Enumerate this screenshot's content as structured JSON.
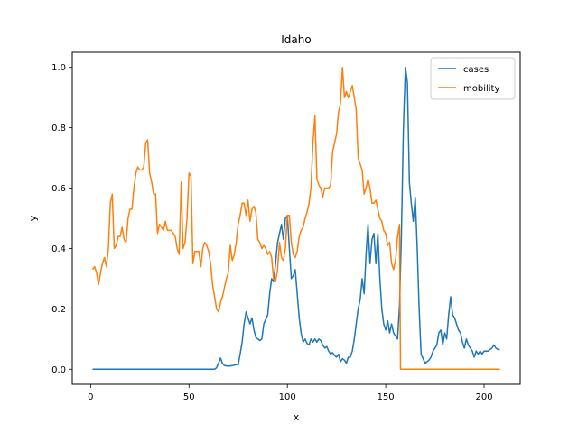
{
  "chart_data": {
    "type": "line",
    "title": "Idaho",
    "xlabel": "x",
    "ylabel": "y",
    "xlim": [
      -9.35,
      218.35
    ],
    "ylim": [
      -0.05,
      1.05
    ],
    "xticks": [
      0,
      50,
      100,
      150,
      200
    ],
    "yticks": [
      0.0,
      0.2,
      0.4,
      0.6,
      0.8,
      1.0
    ],
    "xtick_labels": [
      "0",
      "50",
      "100",
      "150",
      "200"
    ],
    "ytick_labels": [
      "0.0",
      "0.2",
      "0.4",
      "0.6",
      "0.8",
      "1.0"
    ],
    "legend": "top-right",
    "series": [
      {
        "name": "cases",
        "color": "#1f77b4",
        "points": [
          [
            1,
            0
          ],
          [
            20,
            0
          ],
          [
            40,
            0
          ],
          [
            55,
            0
          ],
          [
            63,
            0
          ],
          [
            64,
            0.005
          ],
          [
            65,
            0.02
          ],
          [
            66,
            0.037
          ],
          [
            67,
            0.02
          ],
          [
            68,
            0.012
          ],
          [
            70,
            0.01
          ],
          [
            72,
            0.012
          ],
          [
            74,
            0.015
          ],
          [
            75,
            0.015
          ],
          [
            76,
            0.05
          ],
          [
            77,
            0.09
          ],
          [
            78,
            0.15
          ],
          [
            79,
            0.19
          ],
          [
            80,
            0.17
          ],
          [
            81,
            0.15
          ],
          [
            82,
            0.17
          ],
          [
            83,
            0.13
          ],
          [
            84,
            0.105
          ],
          [
            85,
            0.1
          ],
          [
            86,
            0.095
          ],
          [
            87,
            0.1
          ],
          [
            88,
            0.15
          ],
          [
            89,
            0.165
          ],
          [
            90,
            0.18
          ],
          [
            91,
            0.25
          ],
          [
            92,
            0.3
          ],
          [
            93,
            0.29
          ],
          [
            94,
            0.35
          ],
          [
            95,
            0.42
          ],
          [
            96,
            0.45
          ],
          [
            97,
            0.48
          ],
          [
            98,
            0.43
          ],
          [
            99,
            0.5
          ],
          [
            100,
            0.51
          ],
          [
            101,
            0.4
          ],
          [
            102,
            0.3
          ],
          [
            103,
            0.31
          ],
          [
            104,
            0.33
          ],
          [
            105,
            0.25
          ],
          [
            106,
            0.17
          ],
          [
            107,
            0.12
          ],
          [
            108,
            0.09
          ],
          [
            109,
            0.1
          ],
          [
            110,
            0.085
          ],
          [
            111,
            0.08
          ],
          [
            112,
            0.1
          ],
          [
            113,
            0.09
          ],
          [
            114,
            0.1
          ],
          [
            115,
            0.09
          ],
          [
            116,
            0.1
          ],
          [
            117,
            0.095
          ],
          [
            118,
            0.08
          ],
          [
            119,
            0.07
          ],
          [
            120,
            0.075
          ],
          [
            121,
            0.06
          ],
          [
            122,
            0.05
          ],
          [
            123,
            0.055
          ],
          [
            124,
            0.045
          ],
          [
            125,
            0.04
          ],
          [
            126,
            0.05
          ],
          [
            127,
            0.025
          ],
          [
            128,
            0.035
          ],
          [
            129,
            0.03
          ],
          [
            130,
            0.02
          ],
          [
            131,
            0.04
          ],
          [
            132,
            0.04
          ],
          [
            133,
            0.06
          ],
          [
            134,
            0.1
          ],
          [
            135,
            0.15
          ],
          [
            136,
            0.2
          ],
          [
            137,
            0.23
          ],
          [
            138,
            0.3
          ],
          [
            139,
            0.25
          ],
          [
            140,
            0.38
          ],
          [
            141,
            0.48
          ],
          [
            142,
            0.35
          ],
          [
            143,
            0.43
          ],
          [
            144,
            0.45
          ],
          [
            145,
            0.35
          ],
          [
            146,
            0.45
          ],
          [
            147,
            0.3
          ],
          [
            148,
            0.2
          ],
          [
            149,
            0.15
          ],
          [
            150,
            0.13
          ],
          [
            151,
            0.16
          ],
          [
            152,
            0.12
          ],
          [
            153,
            0.15
          ],
          [
            154,
            0.12
          ],
          [
            155,
            0.11
          ],
          [
            156,
            0.1
          ],
          [
            157,
            0.21
          ],
          [
            158,
            0.45
          ],
          [
            159,
            0.8
          ],
          [
            160,
            1.0
          ],
          [
            161,
            0.95
          ],
          [
            162,
            0.62
          ],
          [
            163,
            0.55
          ],
          [
            164,
            0.49
          ],
          [
            165,
            0.57
          ],
          [
            166,
            0.4
          ],
          [
            167,
            0.2
          ],
          [
            168,
            0.05
          ],
          [
            169,
            0.035
          ],
          [
            170,
            0.02
          ],
          [
            171,
            0.025
          ],
          [
            172,
            0.03
          ],
          [
            173,
            0.04
          ],
          [
            174,
            0.06
          ],
          [
            175,
            0.07
          ],
          [
            176,
            0.08
          ],
          [
            177,
            0.12
          ],
          [
            178,
            0.13
          ],
          [
            179,
            0.08
          ],
          [
            180,
            0.12
          ],
          [
            181,
            0.1
          ],
          [
            182,
            0.18
          ],
          [
            183,
            0.24
          ],
          [
            184,
            0.18
          ],
          [
            185,
            0.17
          ],
          [
            186,
            0.15
          ],
          [
            187,
            0.13
          ],
          [
            188,
            0.12
          ],
          [
            189,
            0.09
          ],
          [
            190,
            0.07
          ],
          [
            191,
            0.1
          ],
          [
            192,
            0.08
          ],
          [
            193,
            0.07
          ],
          [
            194,
            0.06
          ],
          [
            195,
            0.04
          ],
          [
            196,
            0.06
          ],
          [
            197,
            0.05
          ],
          [
            198,
            0.06
          ],
          [
            199,
            0.05
          ],
          [
            200,
            0.06
          ],
          [
            202,
            0.06
          ],
          [
            204,
            0.07
          ],
          [
            205,
            0.08
          ],
          [
            206,
            0.07
          ],
          [
            207,
            0.065
          ],
          [
            208,
            0.065
          ]
        ]
      },
      {
        "name": "mobility",
        "color": "#ff7f0e",
        "points": [
          [
            1,
            0.33
          ],
          [
            2,
            0.34
          ],
          [
            3,
            0.32
          ],
          [
            4,
            0.28
          ],
          [
            5,
            0.32
          ],
          [
            6,
            0.35
          ],
          [
            7,
            0.37
          ],
          [
            8,
            0.34
          ],
          [
            9,
            0.4
          ],
          [
            10,
            0.55
          ],
          [
            11,
            0.58
          ],
          [
            12,
            0.4
          ],
          [
            13,
            0.41
          ],
          [
            14,
            0.44
          ],
          [
            15,
            0.44
          ],
          [
            16,
            0.47
          ],
          [
            17,
            0.43
          ],
          [
            18,
            0.42
          ],
          [
            19,
            0.5
          ],
          [
            20,
            0.53
          ],
          [
            21,
            0.53
          ],
          [
            22,
            0.6
          ],
          [
            23,
            0.65
          ],
          [
            24,
            0.67
          ],
          [
            25,
            0.66
          ],
          [
            26,
            0.66
          ],
          [
            27,
            0.67
          ],
          [
            28,
            0.75
          ],
          [
            29,
            0.76
          ],
          [
            30,
            0.65
          ],
          [
            31,
            0.62
          ],
          [
            32,
            0.58
          ],
          [
            33,
            0.58
          ],
          [
            34,
            0.45
          ],
          [
            35,
            0.48
          ],
          [
            36,
            0.47
          ],
          [
            37,
            0.46
          ],
          [
            38,
            0.49
          ],
          [
            39,
            0.46
          ],
          [
            40,
            0.46
          ],
          [
            41,
            0.46
          ],
          [
            42,
            0.45
          ],
          [
            43,
            0.44
          ],
          [
            44,
            0.4
          ],
          [
            45,
            0.38
          ],
          [
            46,
            0.62
          ],
          [
            47,
            0.4
          ],
          [
            48,
            0.42
          ],
          [
            49,
            0.5
          ],
          [
            50,
            0.65
          ],
          [
            51,
            0.64
          ],
          [
            52,
            0.35
          ],
          [
            53,
            0.39
          ],
          [
            54,
            0.39
          ],
          [
            55,
            0.39
          ],
          [
            56,
            0.34
          ],
          [
            57,
            0.4
          ],
          [
            58,
            0.42
          ],
          [
            59,
            0.41
          ],
          [
            60,
            0.39
          ],
          [
            61,
            0.35
          ],
          [
            62,
            0.28
          ],
          [
            63,
            0.24
          ],
          [
            64,
            0.2
          ],
          [
            65,
            0.19
          ],
          [
            66,
            0.22
          ],
          [
            67,
            0.24
          ],
          [
            68,
            0.27
          ],
          [
            69,
            0.3
          ],
          [
            70,
            0.32
          ],
          [
            71,
            0.41
          ],
          [
            72,
            0.36
          ],
          [
            73,
            0.38
          ],
          [
            74,
            0.42
          ],
          [
            75,
            0.48
          ],
          [
            76,
            0.51
          ],
          [
            77,
            0.55
          ],
          [
            78,
            0.55
          ],
          [
            79,
            0.51
          ],
          [
            80,
            0.56
          ],
          [
            81,
            0.49
          ],
          [
            82,
            0.53
          ],
          [
            83,
            0.54
          ],
          [
            84,
            0.52
          ],
          [
            85,
            0.43
          ],
          [
            86,
            0.42
          ],
          [
            87,
            0.4
          ],
          [
            88,
            0.41
          ],
          [
            89,
            0.4
          ],
          [
            90,
            0.38
          ],
          [
            91,
            0.39
          ],
          [
            92,
            0.37
          ],
          [
            93,
            0.3
          ],
          [
            94,
            0.29
          ],
          [
            95,
            0.33
          ],
          [
            96,
            0.42
          ],
          [
            97,
            0.37
          ],
          [
            98,
            0.36
          ],
          [
            99,
            0.4
          ],
          [
            100,
            0.51
          ],
          [
            101,
            0.51
          ],
          [
            102,
            0.42
          ],
          [
            103,
            0.38
          ],
          [
            104,
            0.37
          ],
          [
            105,
            0.39
          ],
          [
            106,
            0.44
          ],
          [
            107,
            0.46
          ],
          [
            108,
            0.47
          ],
          [
            109,
            0.5
          ],
          [
            110,
            0.52
          ],
          [
            111,
            0.55
          ],
          [
            112,
            0.6
          ],
          [
            113,
            0.75
          ],
          [
            114,
            0.84
          ],
          [
            115,
            0.63
          ],
          [
            116,
            0.61
          ],
          [
            117,
            0.6
          ],
          [
            118,
            0.57
          ],
          [
            119,
            0.6
          ],
          [
            120,
            0.6
          ],
          [
            121,
            0.6
          ],
          [
            122,
            0.61
          ],
          [
            123,
            0.72
          ],
          [
            124,
            0.75
          ],
          [
            125,
            0.78
          ],
          [
            126,
            0.85
          ],
          [
            127,
            0.88
          ],
          [
            128,
            1.0
          ],
          [
            129,
            0.9
          ],
          [
            130,
            0.92
          ],
          [
            131,
            0.9
          ],
          [
            132,
            0.92
          ],
          [
            133,
            0.94
          ],
          [
            134,
            0.9
          ],
          [
            135,
            0.86
          ],
          [
            136,
            0.7
          ],
          [
            137,
            0.68
          ],
          [
            138,
            0.66
          ],
          [
            139,
            0.58
          ],
          [
            140,
            0.6
          ],
          [
            141,
            0.63
          ],
          [
            142,
            0.6
          ],
          [
            143,
            0.55
          ],
          [
            144,
            0.55
          ],
          [
            145,
            0.56
          ],
          [
            146,
            0.53
          ],
          [
            147,
            0.5
          ],
          [
            148,
            0.49
          ],
          [
            149,
            0.46
          ],
          [
            150,
            0.45
          ],
          [
            151,
            0.41
          ],
          [
            152,
            0.42
          ],
          [
            153,
            0.35
          ],
          [
            154,
            0.33
          ],
          [
            155,
            0.36
          ],
          [
            156,
            0.44
          ],
          [
            157,
            0.48
          ],
          [
            157.5,
            0.0
          ],
          [
            160,
            0.0
          ],
          [
            180,
            0.0
          ],
          [
            200,
            0.0
          ],
          [
            208,
            0.0
          ]
        ]
      }
    ]
  }
}
